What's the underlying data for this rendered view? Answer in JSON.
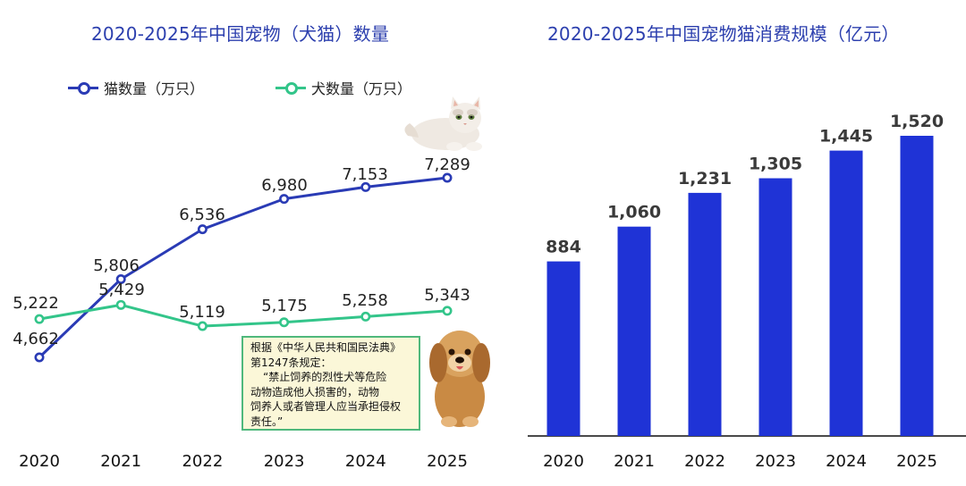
{
  "chart_data": [
    {
      "type": "line",
      "title": "2020-2025年中国宠物（犬猫）数量",
      "x": [
        "2020",
        "2021",
        "2022",
        "2023",
        "2024",
        "2025"
      ],
      "series": [
        {
          "name": "猫数量（万只）",
          "values": [
            4662,
            5806,
            6536,
            6980,
            7153,
            7289
          ],
          "labels": [
            "4,662",
            "5,806",
            "6,536",
            "6,980",
            "7,153",
            "7,289"
          ],
          "color": "#2a3bb5"
        },
        {
          "name": "犬数量（万只）",
          "values": [
            5222,
            5429,
            5119,
            5175,
            5258,
            5343
          ],
          "labels": [
            "5,222",
            "5,429",
            "5,119",
            "5,175",
            "5,258",
            "5,343"
          ],
          "color": "#33c58a"
        }
      ],
      "legend": "top-left",
      "grid": false
    },
    {
      "type": "bar",
      "title": "2020-2025年中国宠物猫消费规模（亿元）",
      "categories": [
        "2020",
        "2021",
        "2022",
        "2023",
        "2024",
        "2025"
      ],
      "values": [
        884,
        1060,
        1231,
        1305,
        1445,
        1520
      ],
      "labels": [
        "884",
        "1,060",
        "1,231",
        "1,305",
        "1,445",
        "1,520"
      ],
      "color": "#1f33d6",
      "grid": false
    }
  ],
  "note": {
    "lines": [
      "根据《中华人民共和国民法典》",
      "第1247条规定：",
      "“禁止饲养的烈性犬等危险",
      "动物造成他人损害的，动物",
      "饲养人或者管理人应当承担侵权",
      "责任。”"
    ]
  },
  "illustrations": [
    "cat-illustration",
    "dog-illustration"
  ]
}
